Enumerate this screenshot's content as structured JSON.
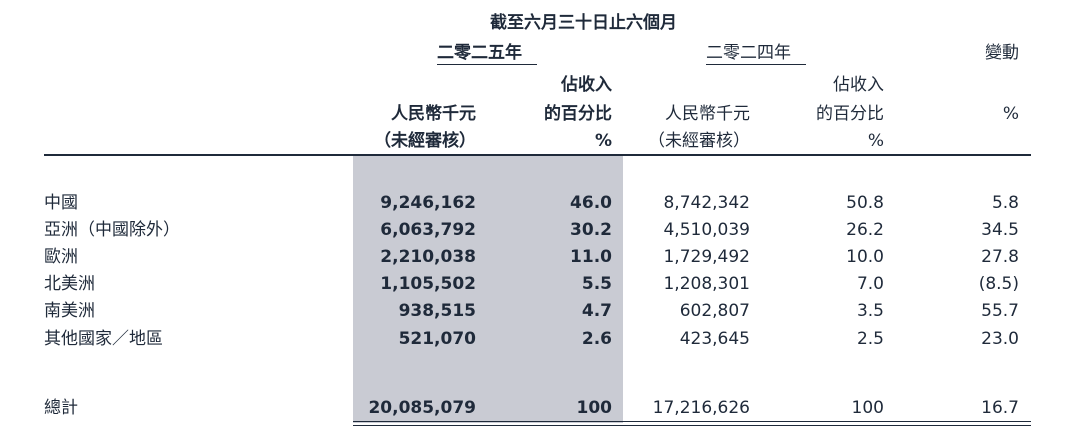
{
  "header": {
    "period": "截至六月三十日止六個月",
    "year_2025": "二零二五年",
    "year_2024": "二零二四年",
    "change": "變動"
  },
  "columns": {
    "rmb_thousand": "人民幣千元",
    "unaudited": "（未經審核）",
    "pct_line1": "佔收入",
    "pct_line2": "的百分比",
    "pct_sign": "%"
  },
  "rows": [
    {
      "region": "中國",
      "v2025": "9,246,162",
      "p2025": "46.0",
      "v2024": "8,742,342",
      "p2024": "50.8",
      "change": "5.8"
    },
    {
      "region": "亞洲（中國除外）",
      "v2025": "6,063,792",
      "p2025": "30.2",
      "v2024": "4,510,039",
      "p2024": "26.2",
      "change": "34.5"
    },
    {
      "region": "歐洲",
      "v2025": "2,210,038",
      "p2025": "11.0",
      "v2024": "1,729,492",
      "p2024": "10.0",
      "change": "27.8"
    },
    {
      "region": "北美洲",
      "v2025": "1,105,502",
      "p2025": "5.5",
      "v2024": "1,208,301",
      "p2024": "7.0",
      "change": "(8.5)"
    },
    {
      "region": "南美洲",
      "v2025": "938,515",
      "p2025": "4.7",
      "v2024": "602,807",
      "p2024": "3.5",
      "change": "55.7"
    },
    {
      "region": "其他國家／地區",
      "v2025": "521,070",
      "p2025": "2.6",
      "v2024": "423,645",
      "p2024": "2.5",
      "change": "23.0"
    }
  ],
  "total": {
    "label": "總計",
    "v2025": "20,085,079",
    "p2025": "100",
    "v2024": "17,216,626",
    "p2024": "100",
    "change": "16.7"
  },
  "colors": {
    "text": "#1f2a3a",
    "shade": "#c9cbd3",
    "rule": "#1f2a3a"
  }
}
